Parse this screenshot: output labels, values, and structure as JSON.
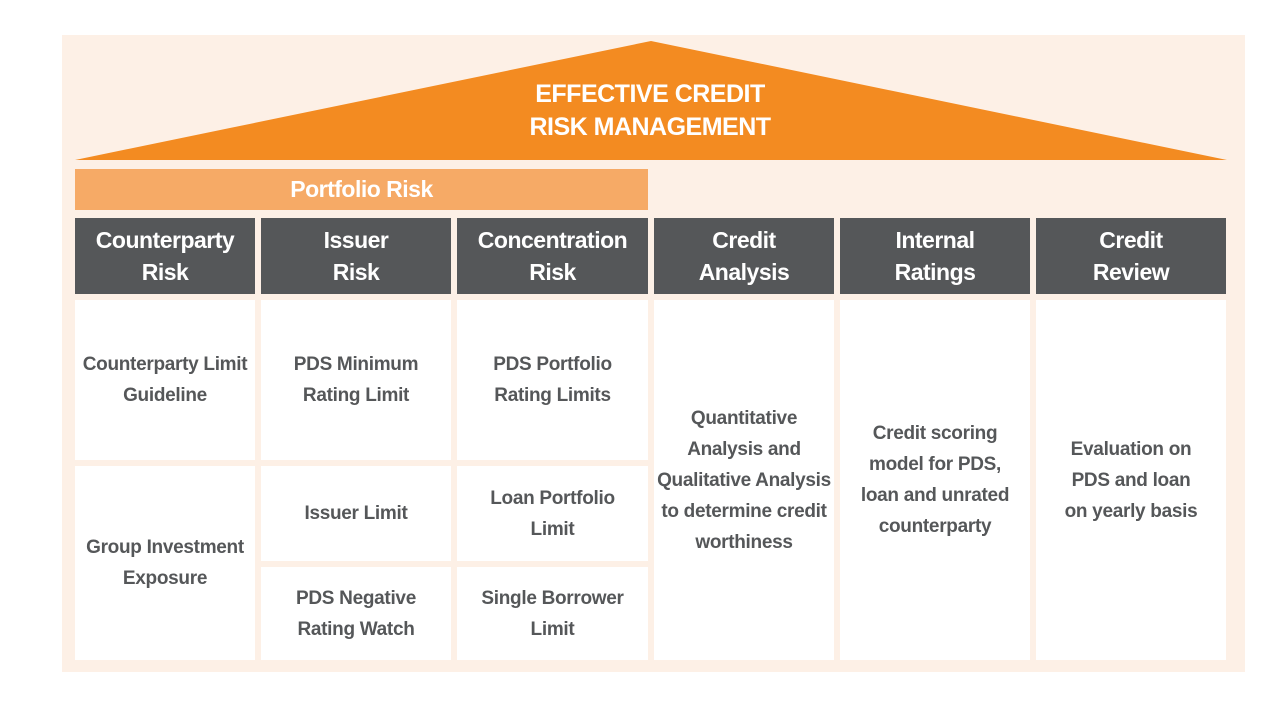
{
  "roof": {
    "title_line1": "EFFECTIVE CREDIT",
    "title_line2": "RISK MANAGEMENT",
    "color": "#f38b21"
  },
  "portfolio_risk": {
    "label": "Portfolio Risk",
    "color": "#f6aa66"
  },
  "header_color": "#555759",
  "columns": [
    {
      "header": [
        "Counterparty",
        "Risk"
      ],
      "cells": [
        [
          "Counterparty Limit",
          "Guideline"
        ],
        [
          "Group Investment",
          "Exposure"
        ]
      ]
    },
    {
      "header": [
        "Issuer",
        "Risk"
      ],
      "cells": [
        [
          "PDS Minimum",
          "Rating Limit"
        ],
        [
          "Issuer Limit"
        ],
        [
          "PDS Negative",
          "Rating Watch"
        ]
      ]
    },
    {
      "header": [
        "Concentration",
        "Risk"
      ],
      "cells": [
        [
          "PDS Portfolio",
          "Rating Limits"
        ],
        [
          "Loan Portfolio",
          "Limit"
        ],
        [
          "Single Borrower",
          "Limit"
        ]
      ]
    },
    {
      "header": [
        "Credit",
        "Analysis"
      ],
      "cells": [
        [
          "Quantitative",
          "Analysis and",
          "Qualitative Analysis",
          "to determine credit",
          "worthiness"
        ]
      ]
    },
    {
      "header": [
        "Internal",
        "Ratings"
      ],
      "cells": [
        [
          "Credit scoring",
          "model for PDS,",
          "loan and unrated",
          "counterparty"
        ]
      ]
    },
    {
      "header": [
        "Credit",
        "Review"
      ],
      "cells": [
        [
          "Evaluation on",
          "PDS and loan",
          "on yearly basis"
        ]
      ]
    }
  ]
}
